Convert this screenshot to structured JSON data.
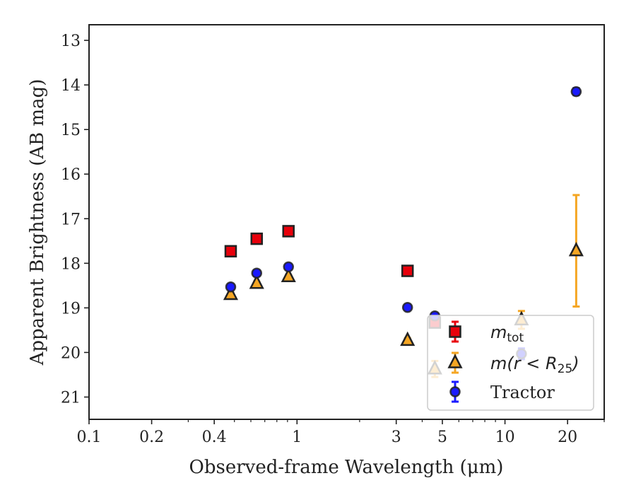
{
  "chart_data": {
    "type": "scatter",
    "xscale": "log",
    "xlim": [
      0.1,
      30
    ],
    "ylim": [
      21.5,
      12.65
    ],
    "y_inverted": true,
    "xlabel": "Observed-frame Wavelength (μm)",
    "ylabel": "Apparent Brightness (AB mag)",
    "x_ticks": [
      0.1,
      0.2,
      0.4,
      1,
      3,
      5,
      10,
      20
    ],
    "x_tick_labels": [
      "0.1",
      "0.2",
      "0.4",
      "1",
      "3",
      "5",
      "10",
      "20"
    ],
    "y_ticks": [
      13,
      14,
      15,
      16,
      17,
      18,
      19,
      20,
      21
    ],
    "y_tick_labels": [
      "13",
      "14",
      "15",
      "16",
      "17",
      "18",
      "19",
      "20",
      "21"
    ],
    "grid": false,
    "legend_position": "lower-right",
    "series": [
      {
        "name": "m_tot",
        "legend_main": "m",
        "legend_sub": "tot",
        "marker": "square",
        "color": "#e8000b",
        "edge_color": "#222222",
        "x": [
          0.48,
          0.64,
          0.91,
          3.4,
          4.6
        ],
        "y": [
          17.73,
          17.45,
          17.28,
          18.17,
          19.33
        ],
        "yerr": [
          0.05,
          0.05,
          0.05,
          0.05,
          0.08
        ]
      },
      {
        "name": "m(r < R25)",
        "legend_main": "m(r < R",
        "legend_sub": "25",
        "legend_close": ")",
        "marker": "triangle",
        "color": "#f5a623",
        "edge_color": "#222222",
        "x": [
          0.48,
          0.64,
          0.91,
          3.4,
          4.6,
          12.0,
          22.0
        ],
        "y": [
          18.7,
          18.45,
          18.3,
          19.73,
          20.37,
          19.27,
          17.72
        ],
        "yerr": [
          0.04,
          0.04,
          0.04,
          0.05,
          0.18,
          0.2,
          1.25
        ]
      },
      {
        "name": "Tractor",
        "marker": "circle",
        "color": "#1a1aff",
        "edge_color": "#222222",
        "x": [
          0.48,
          0.64,
          0.91,
          3.4,
          4.6,
          12.0,
          22.0
        ],
        "y": [
          18.53,
          18.22,
          18.08,
          18.99,
          19.18,
          20.03,
          14.15
        ],
        "yerr": [
          0.05,
          0.06,
          0.05,
          0.05,
          0.06,
          0.12,
          0.08
        ]
      }
    ]
  }
}
